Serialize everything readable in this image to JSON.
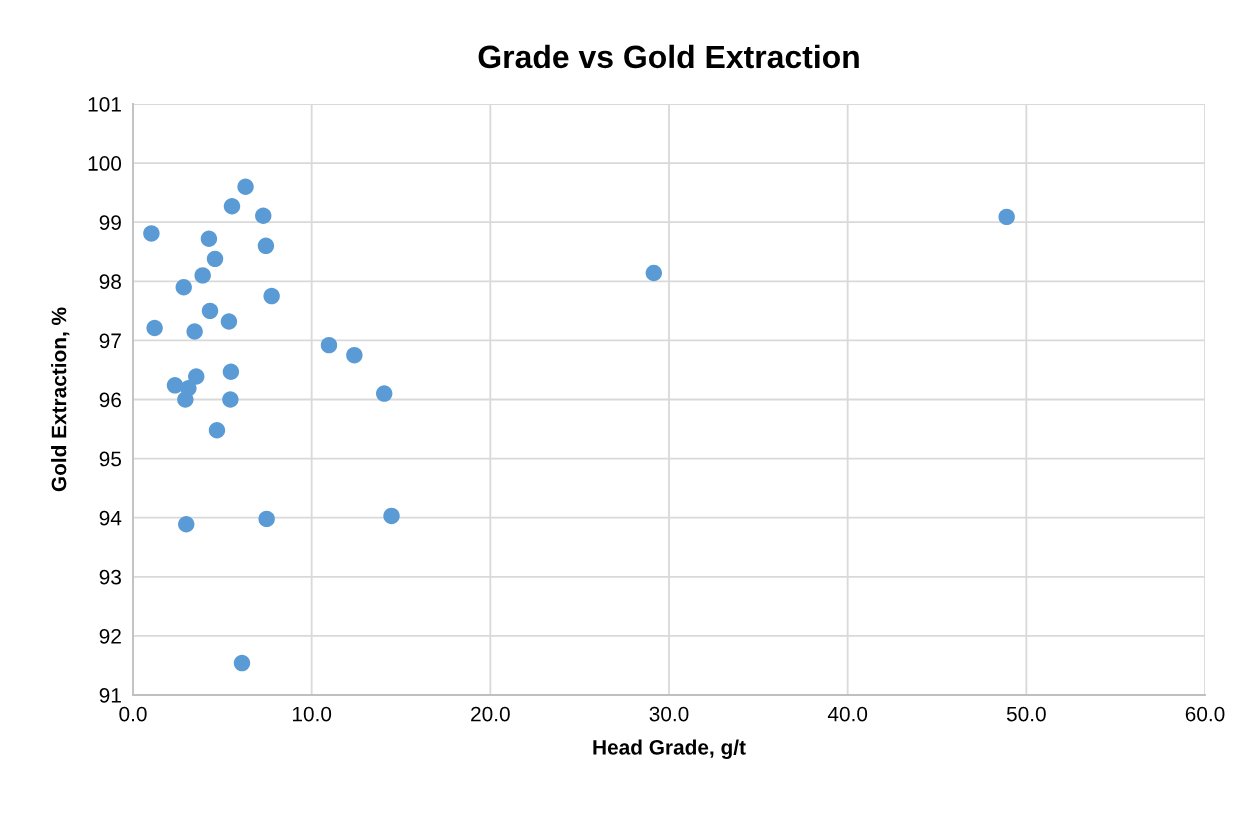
{
  "chart_data": {
    "type": "scatter",
    "title": "Grade vs Gold Extraction",
    "xlabel": "Head Grade, g/t",
    "ylabel": "Gold Extraction, %",
    "x": [
      6.3,
      5.54,
      7.29,
      1.03,
      4.25,
      7.44,
      4.59,
      3.9,
      2.84,
      7.76,
      4.31,
      5.37,
      1.21,
      3.45,
      10.97,
      12.39,
      3.54,
      5.48,
      2.35,
      3.1,
      2.93,
      5.45,
      14.06,
      4.7,
      2.98,
      7.48,
      14.47,
      6.1,
      29.15,
      48.9
    ],
    "values": [
      99.6,
      99.27,
      99.11,
      98.81,
      98.72,
      98.6,
      98.38,
      98.1,
      97.9,
      97.75,
      97.5,
      97.32,
      97.21,
      97.15,
      96.92,
      96.75,
      96.39,
      96.47,
      96.24,
      96.19,
      96.0,
      96.0,
      96.1,
      95.48,
      93.89,
      93.98,
      94.03,
      91.54,
      98.14,
      99.09
    ],
    "color": "#5b9bd5",
    "marker": "circle",
    "xlim": [
      0,
      60
    ],
    "xticks": [
      {
        "value": 0,
        "label": "0.0"
      },
      {
        "value": 10,
        "label": "10.0"
      },
      {
        "value": 20,
        "label": "20.0"
      },
      {
        "value": 30,
        "label": "30.0"
      },
      {
        "value": 40,
        "label": "40.0"
      },
      {
        "value": 50,
        "label": "50.0"
      },
      {
        "value": 60,
        "label": "60.0"
      }
    ],
    "ylim": [
      91,
      101
    ],
    "yticks": [
      91,
      92,
      93,
      94,
      95,
      96,
      97,
      98,
      99,
      100,
      101
    ],
    "grid": true
  }
}
